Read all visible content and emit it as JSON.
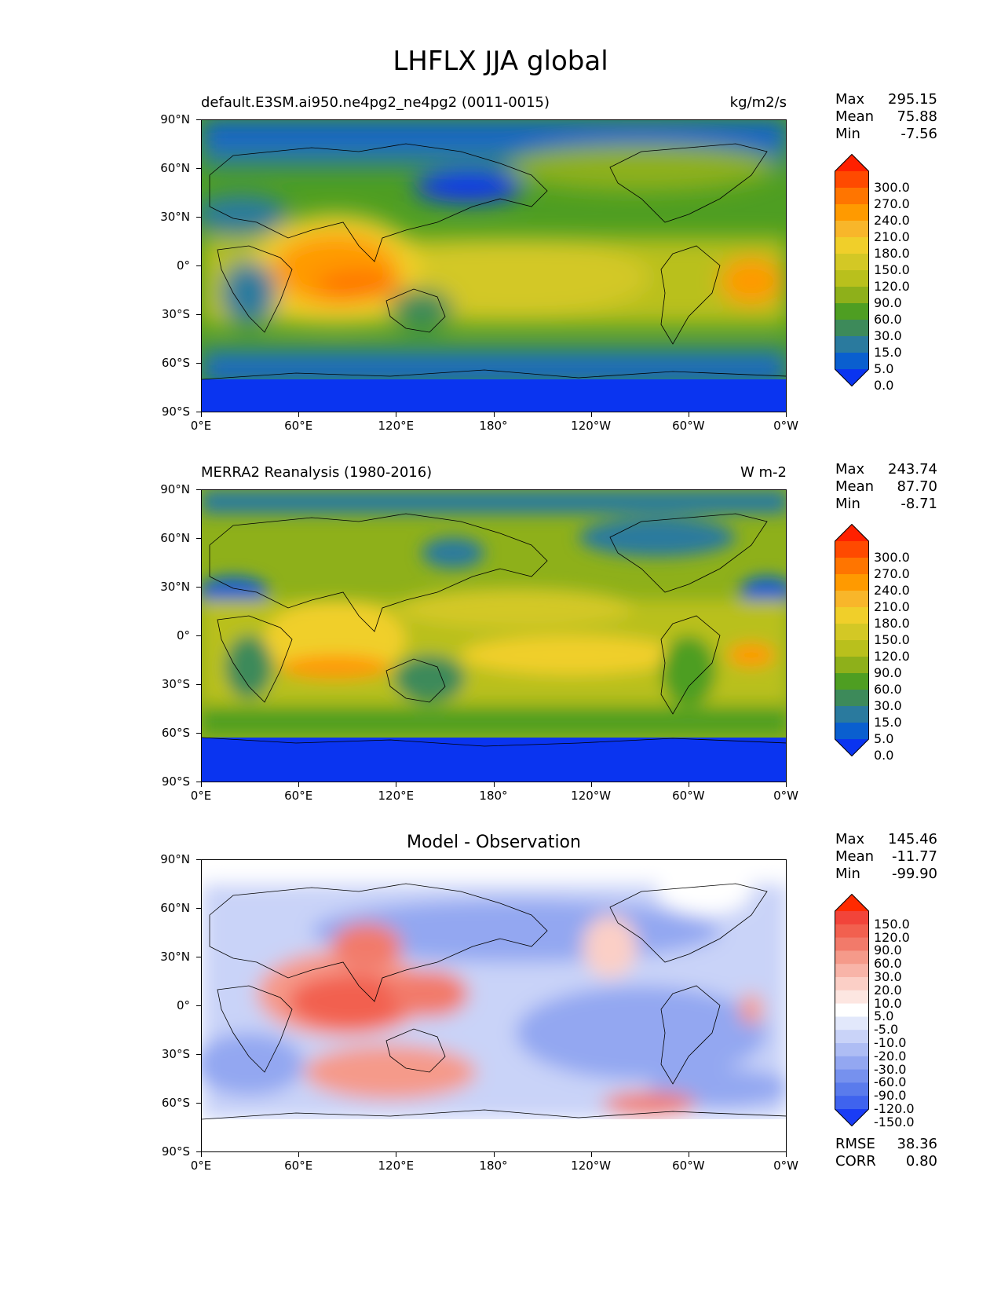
{
  "figure_title": "LHFLX JJA global",
  "lat_ticks": [
    "90°N",
    "60°N",
    "30°N",
    "0°",
    "30°S",
    "60°S",
    "90°S"
  ],
  "lon_ticks": [
    "0°E",
    "60°E",
    "120°E",
    "180°",
    "120°W",
    "60°W",
    "0°W"
  ],
  "panels": [
    {
      "title_left": "default.E3SM.ai950.ne4pg2_ne4pg2 (0011-0015)",
      "title_right": "kg/m2/s",
      "stats": {
        "max_label": "Max",
        "max": "295.15",
        "mean_label": "Mean",
        "mean": "75.88",
        "min_label": "Min",
        "min": "-7.56"
      },
      "colorbar": {
        "levels": [
          "300.0",
          "270.0",
          "240.0",
          "210.0",
          "180.0",
          "150.0",
          "120.0",
          "90.0",
          "60.0",
          "30.0",
          "15.0",
          "5.0",
          "0.0"
        ],
        "colors": [
          "#ff2000",
          "#ff4a00",
          "#ff7500",
          "#ff9a00",
          "#f8b62a",
          "#f0cf2a",
          "#d3c825",
          "#b9c01c",
          "#8eb01a",
          "#4e9e22",
          "#3d8a5a",
          "#2a7a9e",
          "#0a5fcf",
          "#0a34f0"
        ]
      }
    },
    {
      "title_left": "MERRA2 Reanalysis (1980-2016)",
      "title_right": "W m-2",
      "stats": {
        "max_label": "Max",
        "max": "243.74",
        "mean_label": "Mean",
        "mean": "87.70",
        "min_label": "Min",
        "min": "-8.71"
      },
      "colorbar": {
        "levels": [
          "300.0",
          "270.0",
          "240.0",
          "210.0",
          "180.0",
          "150.0",
          "120.0",
          "90.0",
          "60.0",
          "30.0",
          "15.0",
          "5.0",
          "0.0"
        ],
        "colors": [
          "#ff2000",
          "#ff4a00",
          "#ff7500",
          "#ff9a00",
          "#f8b62a",
          "#f0cf2a",
          "#d3c825",
          "#b9c01c",
          "#8eb01a",
          "#4e9e22",
          "#3d8a5a",
          "#2a7a9e",
          "#0a5fcf",
          "#0a34f0"
        ]
      }
    },
    {
      "title_center": "Model - Observation",
      "stats": {
        "max_label": "Max",
        "max": "145.46",
        "mean_label": "Mean",
        "mean": "-11.77",
        "min_label": "Min",
        "min": "-99.90"
      },
      "metrics": {
        "rmse_label": "RMSE",
        "rmse": "38.36",
        "corr_label": "CORR",
        "corr": "0.80"
      },
      "colorbar": {
        "levels": [
          "150.0",
          "120.0",
          "90.0",
          "60.0",
          "30.0",
          "20.0",
          "10.0",
          "5.0",
          "-5.0",
          "-10.0",
          "-20.0",
          "-30.0",
          "-60.0",
          "-90.0",
          "-120.0",
          "-150.0"
        ],
        "colors": [
          "#ff2a00",
          "#f2443a",
          "#f2604f",
          "#f27a6a",
          "#f59a8a",
          "#f8b4a8",
          "#fbcfc6",
          "#fde6e1",
          "#ffffff",
          "#e2e8fb",
          "#c9d3f8",
          "#aebdf4",
          "#93a7f1",
          "#7691ee",
          "#5a7bec",
          "#3f63ee",
          "#1a3cf5"
        ]
      }
    }
  ]
}
